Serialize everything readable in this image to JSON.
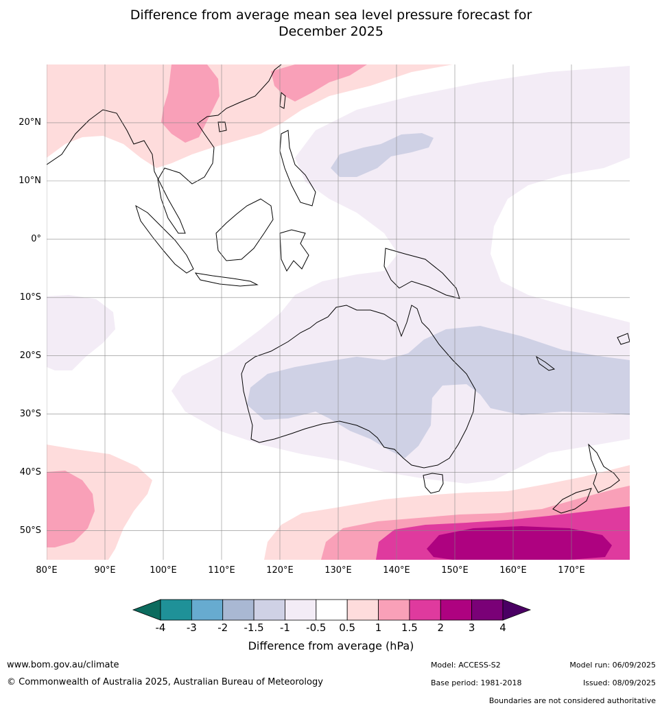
{
  "title": {
    "line1": "Difference from average mean sea level pressure forecast for",
    "line2": "December 2025"
  },
  "map": {
    "extent": {
      "lon_min": 80,
      "lon_max": 180,
      "lat_min": -55,
      "lat_max": 30
    },
    "lat_ticks": [
      "20°N",
      "10°N",
      "0°",
      "10°S",
      "20°S",
      "30°S",
      "40°S",
      "50°S"
    ],
    "lon_ticks": [
      "80°E",
      "90°E",
      "100°E",
      "110°E",
      "120°E",
      "130°E",
      "140°E",
      "150°E",
      "160°E",
      "170°E"
    ],
    "gridlines": true
  },
  "colorbar": {
    "title": "Difference from average (hPa)",
    "tick_labels": [
      "-4",
      "-3",
      "-2",
      "-1.5",
      "-1",
      "-0.5",
      "0.5",
      "1",
      "1.5",
      "2",
      "3",
      "4"
    ],
    "colors": {
      "below_-4": "#0c6b5e",
      "-4_-3": "#1f9198",
      "-3_-2": "#67abd0",
      "-2_-1.5": "#a9b8d3",
      "-1.5_-1": "#cfd1e5",
      "-1_-0.5": "#f3ecf6",
      "-0.5_0.5": "#ffffff",
      "0.5_1": "#fedcdc",
      "1_1.5": "#f9a0b8",
      "1.5_2": "#df3a9e",
      "2_3": "#ae0280",
      "3_4": "#7a0177",
      "above_4": "#4a0063"
    }
  },
  "footer": {
    "website": "www.bom.gov.au/climate",
    "copyright": "© Commonwealth of Australia 2025, Australian Bureau of Meteorology",
    "model": "Model: ACCESS-S2",
    "model_run": "Model run: 06/09/2025",
    "base_period": "Base period: 1981-2018",
    "issued": "Issued: 08/09/2025",
    "disclaimer": "Boundaries are not considered authoritative"
  }
}
